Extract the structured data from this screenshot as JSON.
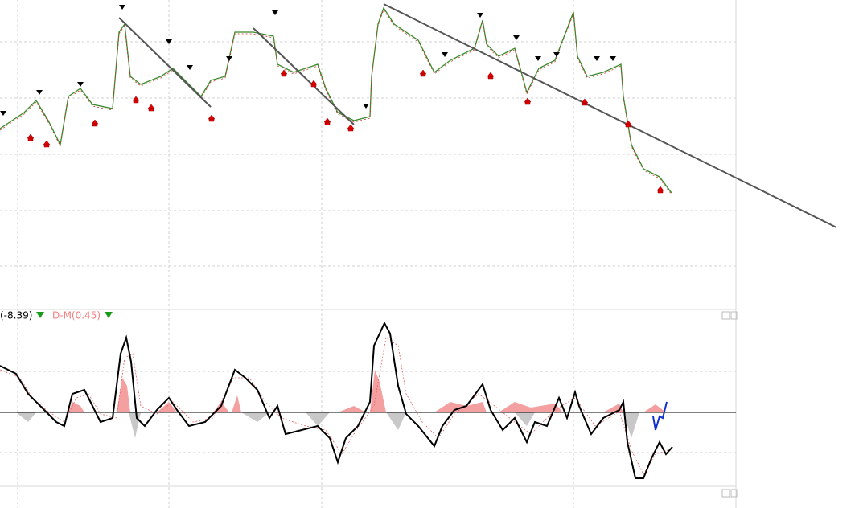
{
  "indicator_legend": {
    "primary_label": "(-8.39)",
    "secondary_label": "D-M(0.45)"
  }
}
